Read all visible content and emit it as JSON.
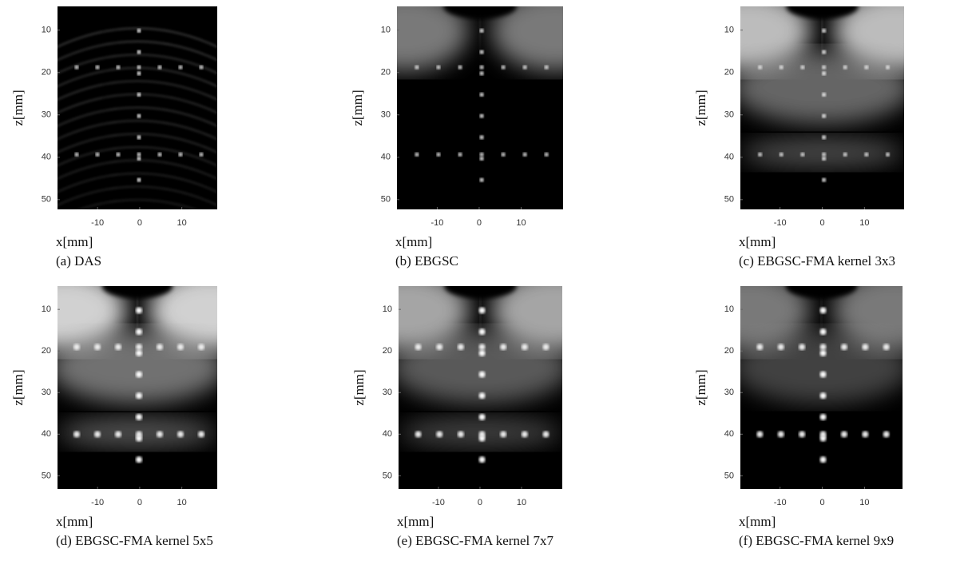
{
  "chart_data": [
    {
      "type": "image",
      "xlabel": "x[mm]",
      "ylabel": "z[mm]",
      "caption": "(a) DAS",
      "xlim": [
        -19.5,
        18.4
      ],
      "ylim": [
        52.3,
        4.4
      ],
      "xticks": [
        -10,
        0,
        10
      ],
      "yticks": [
        10,
        20,
        30,
        40,
        50
      ]
    },
    {
      "type": "image",
      "xlabel": "x[mm]",
      "ylabel": "z[mm]",
      "caption": "(b) EBGSC",
      "xlim": [
        -19.6,
        20.0
      ],
      "ylim": [
        52.3,
        4.4
      ],
      "xticks": [
        -10,
        0,
        10
      ],
      "yticks": [
        10,
        20,
        30,
        40,
        50
      ]
    },
    {
      "type": "image",
      "xlabel": "x[mm]",
      "ylabel": "z[mm]",
      "caption": "(c) EBGSC-FMA kernel 3x3",
      "xlim": [
        -19.4,
        19.4
      ],
      "ylim": [
        52.3,
        4.4
      ],
      "xticks": [
        -10,
        0,
        10
      ],
      "yticks": [
        10,
        20,
        30,
        40,
        50
      ]
    },
    {
      "type": "image",
      "xlabel": "x[mm]",
      "ylabel": "z[mm]",
      "caption": "(d) EBGSC-FMA kernel 5x5",
      "xlim": [
        -19.5,
        18.4
      ],
      "ylim": [
        53.2,
        4.4
      ],
      "xticks": [
        -10,
        0,
        10
      ],
      "yticks": [
        10,
        20,
        30,
        40,
        50
      ]
    },
    {
      "type": "image",
      "xlabel": "x[mm]",
      "ylabel": "z[mm]",
      "caption": "(e) EBGSC-FMA kernel 7x7",
      "xlim": [
        -19.6,
        19.8
      ],
      "ylim": [
        53.2,
        4.4
      ],
      "xticks": [
        -10,
        0,
        10
      ],
      "yticks": [
        10,
        20,
        30,
        40,
        50
      ]
    },
    {
      "type": "image",
      "xlabel": "x[mm]",
      "ylabel": "z[mm]",
      "caption": "(f) EBGSC-FMA kernel 9x9",
      "xlim": [
        -19.4,
        19.0
      ],
      "ylim": [
        53.2,
        4.4
      ],
      "xticks": [
        -10,
        0,
        10
      ],
      "yticks": [
        10,
        20,
        30,
        40,
        50
      ]
    }
  ]
}
